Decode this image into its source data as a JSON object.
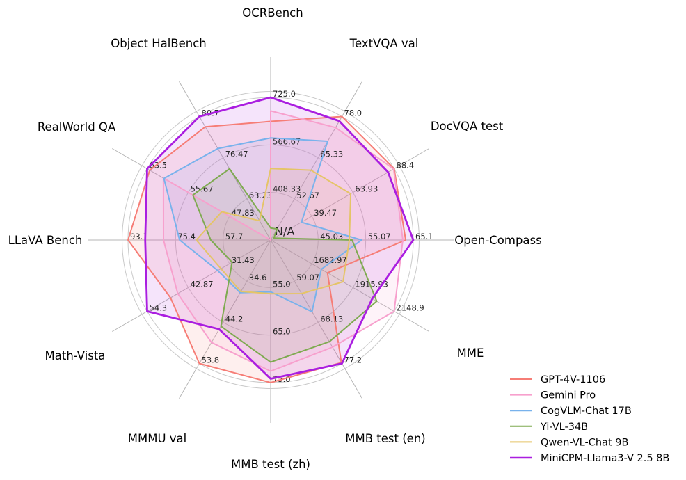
{
  "chart_data": {
    "type": "radar",
    "center_label": "N/A",
    "axes": [
      {
        "label": "OCRBench",
        "min": 250,
        "max": 725,
        "tick_labels": [
          "725.0",
          "566.67",
          "408.33",
          "N/A"
        ]
      },
      {
        "label": "TextVQA val",
        "min": 40,
        "max": 78.0,
        "tick_labels": [
          "78.0",
          "65.33",
          "52.67"
        ]
      },
      {
        "label": "DocVQA test",
        "min": 15,
        "max": 88.4,
        "tick_labels": [
          "88.4",
          "63.93",
          "39.47"
        ]
      },
      {
        "label": "Open-Compass",
        "min": 35,
        "max": 65.1,
        "tick_labels": [
          "65.1",
          "55.07",
          "45.03"
        ]
      },
      {
        "label": "MME",
        "min": 1450,
        "max": 2148.9,
        "tick_labels": [
          "2148.9",
          "1915.93",
          "1682.97"
        ]
      },
      {
        "label": "MMB test (en)",
        "min": 50,
        "max": 77.2,
        "tick_labels": [
          "77.2",
          "68.13",
          "59.07"
        ]
      },
      {
        "label": "MMB test (zh)",
        "min": 45,
        "max": 75.0,
        "tick_labels": [
          "75.0",
          "65.0",
          "55.0"
        ]
      },
      {
        "label": "MMMU val",
        "min": 25,
        "max": 53.8,
        "tick_labels": [
          "53.8",
          "44.2",
          "34.6"
        ]
      },
      {
        "label": "Math-Vista",
        "min": 20,
        "max": 54.3,
        "tick_labels": [
          "54.3",
          "42.87",
          "31.43"
        ]
      },
      {
        "label": "LLaVA Bench",
        "min": 40,
        "max": 93.1,
        "tick_labels": [
          "93.1",
          "75.4",
          "57.7"
        ]
      },
      {
        "label": "RealWorld QA",
        "min": 40,
        "max": 63.5,
        "tick_labels": [
          "63.5",
          "55.67",
          "47.83"
        ]
      },
      {
        "label": "Object HalBench",
        "min": 50,
        "max": 89.7,
        "tick_labels": [
          "89.7",
          "76.47",
          "63.23"
        ]
      }
    ],
    "series": [
      {
        "name": "GPT-4V-1106",
        "color": "#F67D76",
        "values": [
          645,
          78.0,
          88.4,
          63.5,
          1771.5,
          77.0,
          75.0,
          53.8,
          47.8,
          93.1,
          63.0,
          86.4
        ]
      },
      {
        "name": "Gemini Pro",
        "color": "#F7A0CD",
        "values": [
          680,
          74.6,
          88.1,
          62.9,
          2148.9,
          73.6,
          72.6,
          48.9,
          45.8,
          79.9,
          60.4,
          null
        ]
      },
      {
        "name": "CogVLM-Chat 17B",
        "color": "#78B2EC",
        "values": [
          590,
          70.4,
          33.3,
          54.2,
          1736.6,
          65.8,
          55.9,
          37.3,
          34.7,
          73.9,
          60.3,
          79.4
        ]
      },
      {
        "name": "Yi-VL-34B",
        "color": "#7EAA50",
        "values": [
          290,
          43.4,
          16.9,
          52.2,
          2050.2,
          72.4,
          70.7,
          45.1,
          30.7,
          62.3,
          54.8,
          72.9
        ]
      },
      {
        "name": "Qwen-VL-Chat 9B",
        "color": "#E5C467",
        "values": [
          488,
          61.5,
          62.6,
          51.6,
          1860.0,
          61.8,
          56.3,
          37.0,
          33.8,
          67.7,
          49.3,
          56.2
        ]
      },
      {
        "name": "MiniCPM-Llama3-V 2.5 8B",
        "color": "#AA1EE0",
        "values": [
          725,
          76.6,
          84.8,
          65.1,
          2024.6,
          77.2,
          74.2,
          45.8,
          54.3,
          86.7,
          63.5,
          89.7
        ]
      }
    ],
    "grid": {
      "rings": 3,
      "ring_color": "#C9C9C9",
      "spoke_color": "#B5B5B5",
      "boundary_color": "#C9C9C9"
    },
    "text_colors": {
      "tick": "#262626",
      "category": "#000000",
      "legend": "#000000"
    },
    "legend_position": "lower right"
  }
}
